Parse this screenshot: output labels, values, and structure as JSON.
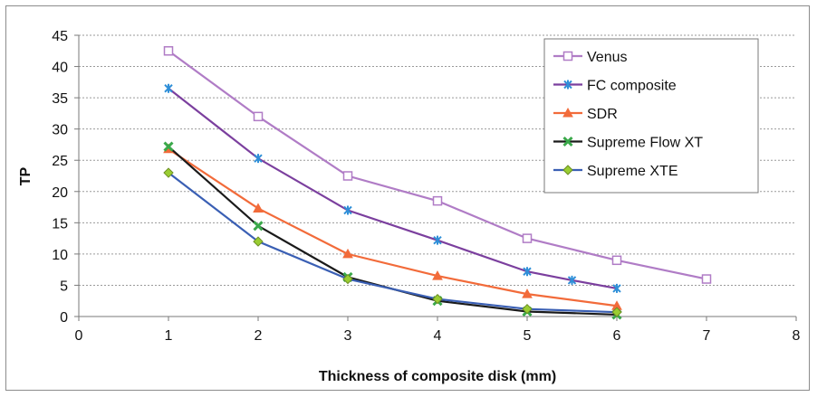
{
  "chart_data": {
    "type": "line",
    "title": "",
    "xlabel": "Thickness of composite disk (mm)",
    "ylabel": "TP",
    "xlim": [
      0,
      8
    ],
    "ylim": [
      0,
      45
    ],
    "xticks": [
      0,
      1,
      2,
      3,
      4,
      5,
      6,
      7,
      8
    ],
    "yticks": [
      0,
      5,
      10,
      15,
      20,
      25,
      30,
      35,
      40,
      45
    ],
    "grid": "horizontal dashed",
    "legend_position": "top-right",
    "series": [
      {
        "name": "Venus",
        "color": "#b07cc6",
        "marker": "square-open",
        "points": [
          [
            1,
            42.5
          ],
          [
            2,
            32.0
          ],
          [
            3,
            22.5
          ],
          [
            4,
            18.5
          ],
          [
            5,
            12.5
          ],
          [
            6,
            9.0
          ],
          [
            7,
            6.0
          ]
        ]
      },
      {
        "name": "FC composite",
        "color": "#7b3f9e",
        "marker": "asterisk",
        "points": [
          [
            1,
            36.5
          ],
          [
            2,
            25.3
          ],
          [
            3,
            17.0
          ],
          [
            4,
            12.2
          ],
          [
            5,
            7.2
          ],
          [
            5.5,
            5.8
          ],
          [
            6,
            4.5
          ]
        ]
      },
      {
        "name": "SDR",
        "color": "#f26b3a",
        "marker": "triangle",
        "points": [
          [
            1,
            26.8
          ],
          [
            2,
            17.3
          ],
          [
            3,
            10.0
          ],
          [
            4,
            6.5
          ],
          [
            5,
            3.6
          ],
          [
            6,
            1.7
          ]
        ]
      },
      {
        "name": "Supreme Flow XT",
        "color": "#1a1a1a",
        "marker": "x-green",
        "points": [
          [
            1,
            27.2
          ],
          [
            2,
            14.5
          ],
          [
            3,
            6.3
          ],
          [
            4,
            2.5
          ],
          [
            5,
            0.8
          ],
          [
            6,
            0.3
          ]
        ]
      },
      {
        "name": "Supreme XTE",
        "color": "#3a5fb4",
        "marker": "diamond",
        "points": [
          [
            1,
            23.0
          ],
          [
            2,
            12.0
          ],
          [
            3,
            6.0
          ],
          [
            4,
            2.8
          ],
          [
            5,
            1.2
          ],
          [
            6,
            0.7
          ]
        ]
      }
    ]
  }
}
